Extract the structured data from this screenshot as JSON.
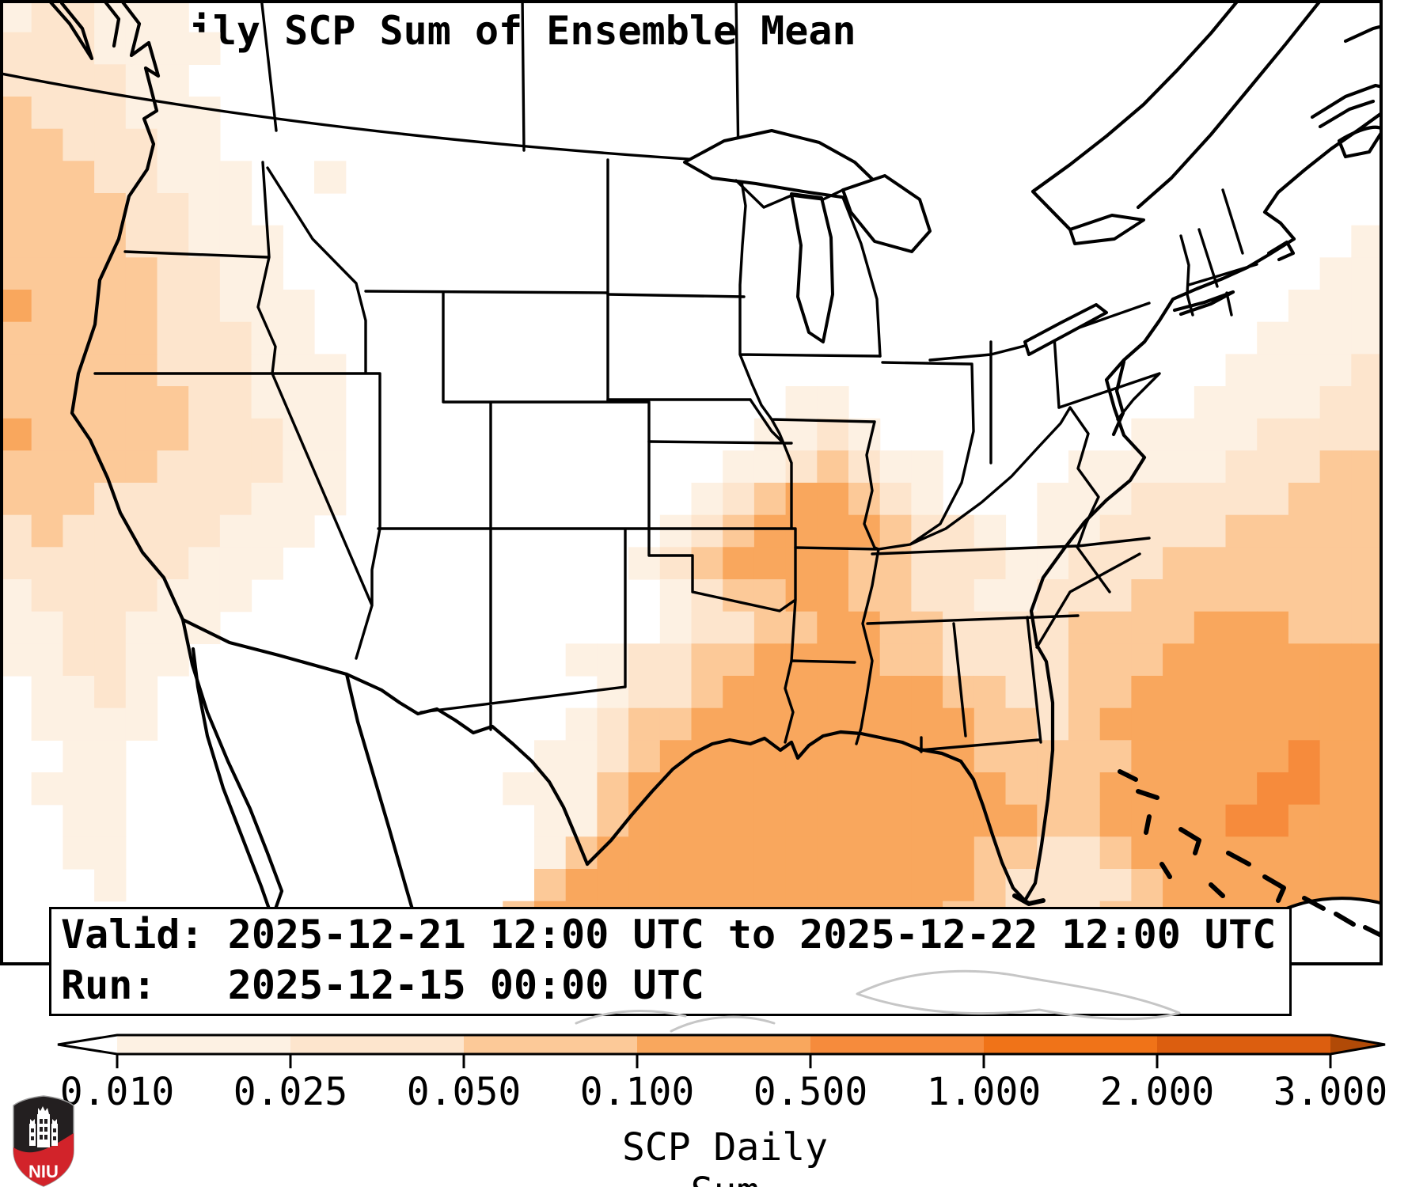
{
  "title": "GEFS Daily SCP Sum of Ensemble Mean",
  "info_box": {
    "line1": "Valid: 2025-12-21 12:00 UTC to 2025-12-22 12:00 UTC",
    "line2": "Run:   2025-12-15 00:00 UTC"
  },
  "colorbar": {
    "label": "SCP Daily Sum",
    "tick_labels": [
      "0.010",
      "0.025",
      "0.050",
      "0.100",
      "0.500",
      "1.000",
      "2.000",
      "3.000"
    ],
    "class_colors": [
      "#fdf1e3",
      "#fde5cd",
      "#fcc998",
      "#f9a75d",
      "#f68b3c",
      "#f07318",
      "#dc5e0f"
    ],
    "under_color": "#ffffff",
    "over_color": "#b14a07",
    "outline_color": "#000000"
  },
  "logo": {
    "text": "NIU",
    "black": "#231f20",
    "red": "#d2232a"
  },
  "chart_data": {
    "type": "heatmap",
    "title": "GEFS Daily SCP Sum of Ensemble Mean",
    "colorbar_label": "SCP Daily Sum",
    "scale_boundaries": [
      0.01,
      0.025,
      0.05,
      0.1,
      0.5,
      1.0,
      2.0,
      3.0
    ],
    "scale_style": "discrete Oranges classes with under/over arrow extensions",
    "valid_period": "2025-12-21 12:00 UTC to 2025-12-22 12:00 UTC",
    "run_time": "2025-12-15 00:00 UTC",
    "regions": [
      {
        "region": "Gulf of Mexico, Louisiana/Mississippi/Alabama coast, Tennessee Valley band",
        "approx_value": "0.1-0.5"
      },
      {
        "region": "Western Atlantic southeast of the Carolinas / Bahamas",
        "approx_value": "0.1-0.5 with pockets 0.5-1"
      },
      {
        "region": "Pacific offshore of Washington/Oregon/northern California",
        "approx_value": "0.025-0.1"
      },
      {
        "region": "Georgia, Carolinas, Florida peninsula interior",
        "approx_value": "0.025-0.1"
      },
      {
        "region": "Central US, interior West, Great Lakes, Northeast",
        "approx_value": "< 0.01"
      }
    ]
  },
  "map": {
    "grid": {
      "cols": 44,
      "rows": 30
    },
    "palette": {
      "1": "#fdf1e3",
      "2": "#fde5cd",
      "3": "#fcc998",
      "4": "#f9a75d",
      "5": "#f68b3c"
    },
    "raster_rows": [
      "12211100000000000000000000000000000000000000",
      "22211110000000000000000000000000000000000000",
      "22221100000000000000000000000000000000000000",
      "32221110000000000000000000000000000000000000",
      "33222110000000000000000000000000000000000000",
      "33322111001000000000000000000000000000000000",
      "33332211000000000000000000000000000000000000",
      "33332211100000000000000000000000000000000001",
      "33333221100000000000000000000000000000000011",
      "43333221110000000000000000000000000000000111",
      "33333222110000000000000000000000000000001111",
      "33333222111000000000000000000000000000011112",
      "33333322111000000000000001100000000000111122",
      "43333322211000000000000011210000000011112222",
      "33333222211000000000000112321100001111122233",
      "33322222111000000000001234432100011122222333",
      "23222221110000000000012344443221011222233333",
      "22222211100000000000123444433222112223333333",
      "12222111000000000000012334433221122233333333",
      "11221110000000000000012233443322223333444333",
      "11221100000000000011223344443322223334444444",
      "01121000000000000001223444444433223344444444",
      "01111000000000000012334444444443323444444444",
      "00110000000000000112344444444443333344444544",
      "01110000000000001113444444444444333444445544",
      "00110000000000000113444444444444433444455444",
      "00110000000000000134444444444443322344444444",
      "00010000000000000344444444444443222234444444",
      "00000000000000003444444444444433222334444444",
      "00000000000000034444444444444433333334444444"
    ]
  },
  "colorbar_geometry_note": "ticks evenly spaced"
}
